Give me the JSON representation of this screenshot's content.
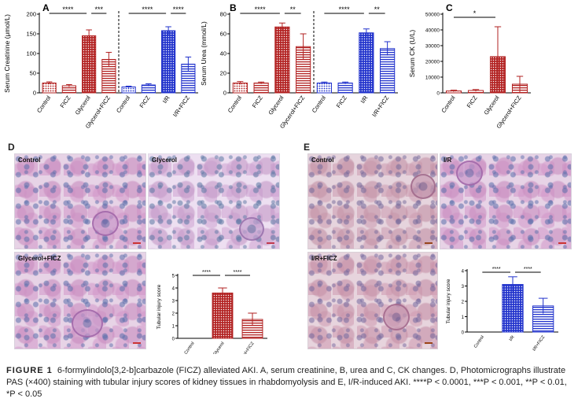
{
  "panels": {
    "A": "A",
    "B": "B",
    "C": "C",
    "D": "D",
    "E": "E"
  },
  "chart_data": [
    {
      "id": "A",
      "type": "bar",
      "ylabel": "Serum Creatinine (μmol/L)",
      "ylim": [
        0,
        200
      ],
      "yticks": [
        0,
        50,
        100,
        150,
        200
      ],
      "categories": [
        "Control",
        "FICZ",
        "Glycerol",
        "Glycerol+FICZ",
        "Control",
        "FICZ",
        "I/R",
        "I/R+FICZ"
      ],
      "values": [
        25,
        18,
        145,
        85,
        15,
        20,
        158,
        73
      ],
      "errors": [
        3,
        3,
        15,
        18,
        2,
        3,
        10,
        18
      ],
      "colors": [
        "#b22222",
        "#b22222",
        "#b22222",
        "#b22222",
        "#2233cc",
        "#2233cc",
        "#2233cc",
        "#2233cc"
      ],
      "patterns": [
        "dots",
        "hlines",
        "grid",
        "hlines",
        "dots",
        "hlines",
        "grid",
        "hlines"
      ],
      "divider_after": 3,
      "significance": [
        {
          "from": 0,
          "to": 2,
          "label": "****"
        },
        {
          "from": 2,
          "to": 3,
          "label": "***"
        },
        {
          "from": 4,
          "to": 6,
          "label": "****"
        },
        {
          "from": 6,
          "to": 7,
          "label": "****"
        }
      ]
    },
    {
      "id": "B",
      "type": "bar",
      "ylabel": "Serum Urea (mmol/L)",
      "ylim": [
        0,
        80
      ],
      "yticks": [
        0,
        20,
        40,
        60,
        80
      ],
      "categories": [
        "Control",
        "FICZ",
        "Glycerol",
        "Glycerol+FICZ",
        "Control",
        "FICZ",
        "I/R",
        "I/R+FICZ"
      ],
      "values": [
        10,
        10,
        67,
        47,
        10,
        10,
        61,
        45
      ],
      "errors": [
        1.5,
        1,
        4,
        13,
        1,
        1,
        4,
        7
      ],
      "colors": [
        "#b22222",
        "#b22222",
        "#b22222",
        "#b22222",
        "#2233cc",
        "#2233cc",
        "#2233cc",
        "#2233cc"
      ],
      "patterns": [
        "dots",
        "hlines",
        "grid",
        "hlines",
        "dots",
        "hlines",
        "grid",
        "hlines"
      ],
      "divider_after": 3,
      "significance": [
        {
          "from": 0,
          "to": 2,
          "label": "****"
        },
        {
          "from": 2,
          "to": 3,
          "label": "**"
        },
        {
          "from": 4,
          "to": 6,
          "label": "****"
        },
        {
          "from": 6,
          "to": 7,
          "label": "**"
        }
      ]
    },
    {
      "id": "C",
      "type": "bar",
      "ylabel": "Serum CK (U/L)",
      "ylim": [
        0,
        50000
      ],
      "yticks": [
        0,
        10000,
        20000,
        30000,
        40000,
        50000
      ],
      "categories": [
        "Control",
        "FICZ",
        "Glycerol",
        "Glycerol+FICZ"
      ],
      "values": [
        1200,
        1500,
        23000,
        5500
      ],
      "errors": [
        500,
        600,
        19000,
        5000
      ],
      "colors": [
        "#b22222",
        "#b22222",
        "#b22222",
        "#b22222"
      ],
      "patterns": [
        "dots",
        "hlines",
        "grid",
        "hlines"
      ],
      "significance": [
        {
          "from": 0,
          "to": 2,
          "label": "*"
        }
      ]
    },
    {
      "id": "D-score",
      "type": "bar",
      "ylabel": "Tubular injury score",
      "ylim": [
        0,
        5
      ],
      "yticks": [
        0,
        1,
        2,
        3,
        4,
        5
      ],
      "categories": [
        "Control",
        "Glycerol",
        "Glycerol+FICZ"
      ],
      "values": [
        0,
        3.6,
        1.5
      ],
      "errors": [
        0,
        0.4,
        0.5
      ],
      "colors": [
        "#b22222",
        "#b22222",
        "#b22222"
      ],
      "patterns": [
        "none",
        "grid",
        "hlines"
      ],
      "significance": [
        {
          "from": 0,
          "to": 1,
          "label": "****"
        },
        {
          "from": 1,
          "to": 2,
          "label": "****"
        }
      ]
    },
    {
      "id": "E-score",
      "type": "bar",
      "ylabel": "Tubular injury score",
      "ylim": [
        0,
        4
      ],
      "yticks": [
        0,
        1,
        2,
        3,
        4
      ],
      "categories": [
        "Control",
        "I/R",
        "I/R+FICZ"
      ],
      "values": [
        0,
        3.1,
        1.7
      ],
      "errors": [
        0,
        0.5,
        0.5
      ],
      "colors": [
        "#2233cc",
        "#2233cc",
        "#2233cc"
      ],
      "patterns": [
        "none",
        "grid",
        "hlines"
      ],
      "significance": [
        {
          "from": 0,
          "to": 1,
          "label": "****"
        },
        {
          "from": 1,
          "to": 2,
          "label": "****"
        }
      ]
    }
  ],
  "micrographs": {
    "d1": "Control",
    "d2": "Glycerol",
    "d3": "Glycerol+FICZ",
    "e1": "Control",
    "e2": "I/R",
    "e3": "I/R+FICZ"
  },
  "caption": {
    "label": "FIGURE 1",
    "text": "6-formylindolo[3,2-b]carbazole (FICZ) alleviated AKI. A, serum creatinine, B, urea and C, CK changes. D, Photomicrographs illustrate PAS (×400) staining with tubular injury scores of kidney tissues in rhabdomyolysis and E, I/R-induced AKI. ****P < 0.0001, ***P < 0.001, **P < 0.01, *P < 0.05"
  }
}
